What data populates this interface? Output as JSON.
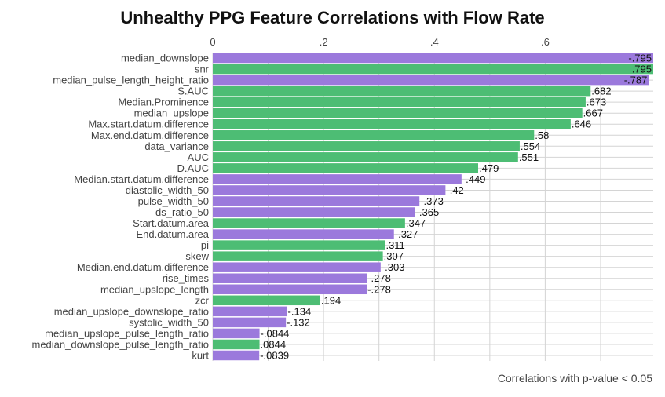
{
  "chart_data": {
    "type": "bar",
    "orientation": "horizontal",
    "title": "Unhealthy PPG Feature Correlations with Flow Rate",
    "caption": "Correlations with p-value < 0.05",
    "xlabel": "",
    "ylabel": "",
    "xlim": [
      0,
      0.795
    ],
    "x_ticks": [
      0,
      0.2,
      0.4,
      0.6
    ],
    "x_tick_labels": [
      "0",
      ".2",
      ".4",
      ".6"
    ],
    "x_axis_position": "top",
    "grid": true,
    "colors": {
      "positive": "#4dbd74",
      "negative": "#9b79dc"
    },
    "bars": [
      {
        "category": "median_downslope",
        "value": 0.795,
        "label": "-.795",
        "sign": "negative"
      },
      {
        "category": "snr",
        "value": 0.795,
        "label": ".795",
        "sign": "positive"
      },
      {
        "category": "median_pulse_length_height_ratio",
        "value": 0.787,
        "label": "-.787",
        "sign": "negative"
      },
      {
        "category": "S.AUC",
        "value": 0.682,
        "label": ".682",
        "sign": "positive"
      },
      {
        "category": "Median.Prominence",
        "value": 0.673,
        "label": ".673",
        "sign": "positive"
      },
      {
        "category": "median_upslope",
        "value": 0.667,
        "label": ".667",
        "sign": "positive"
      },
      {
        "category": "Max.start.datum.difference",
        "value": 0.646,
        "label": ".646",
        "sign": "positive"
      },
      {
        "category": "Max.end.datum.difference",
        "value": 0.58,
        "label": ".58",
        "sign": "positive"
      },
      {
        "category": "data_variance",
        "value": 0.554,
        "label": ".554",
        "sign": "positive"
      },
      {
        "category": "AUC",
        "value": 0.551,
        "label": ".551",
        "sign": "positive"
      },
      {
        "category": "D.AUC",
        "value": 0.479,
        "label": ".479",
        "sign": "positive"
      },
      {
        "category": "Median.start.datum.difference",
        "value": 0.449,
        "label": "-.449",
        "sign": "negative"
      },
      {
        "category": "diastolic_width_50",
        "value": 0.42,
        "label": "-.42",
        "sign": "negative"
      },
      {
        "category": "pulse_width_50",
        "value": 0.373,
        "label": "-.373",
        "sign": "negative"
      },
      {
        "category": "ds_ratio_50",
        "value": 0.365,
        "label": "-.365",
        "sign": "negative"
      },
      {
        "category": "Start.datum.area",
        "value": 0.347,
        "label": ".347",
        "sign": "positive"
      },
      {
        "category": "End.datum.area",
        "value": 0.327,
        "label": "-.327",
        "sign": "negative"
      },
      {
        "category": "pi",
        "value": 0.311,
        "label": ".311",
        "sign": "positive"
      },
      {
        "category": "skew",
        "value": 0.307,
        "label": ".307",
        "sign": "positive"
      },
      {
        "category": "Median.end.datum.difference",
        "value": 0.303,
        "label": "-.303",
        "sign": "negative"
      },
      {
        "category": "rise_times",
        "value": 0.278,
        "label": "-.278",
        "sign": "negative"
      },
      {
        "category": "median_upslope_length",
        "value": 0.278,
        "label": "-.278",
        "sign": "negative"
      },
      {
        "category": "zcr",
        "value": 0.194,
        "label": ".194",
        "sign": "positive"
      },
      {
        "category": "median_upslope_downslope_ratio",
        "value": 0.134,
        "label": "-.134",
        "sign": "negative"
      },
      {
        "category": "systolic_width_50",
        "value": 0.132,
        "label": "-.132",
        "sign": "negative"
      },
      {
        "category": "median_upslope_pulse_length_ratio",
        "value": 0.0844,
        "label": "-.0844",
        "sign": "negative"
      },
      {
        "category": "median_downslope_pulse_length_ratio",
        "value": 0.0844,
        "label": ".0844",
        "sign": "positive"
      },
      {
        "category": "kurt",
        "value": 0.0839,
        "label": "-.0839",
        "sign": "negative"
      }
    ]
  }
}
